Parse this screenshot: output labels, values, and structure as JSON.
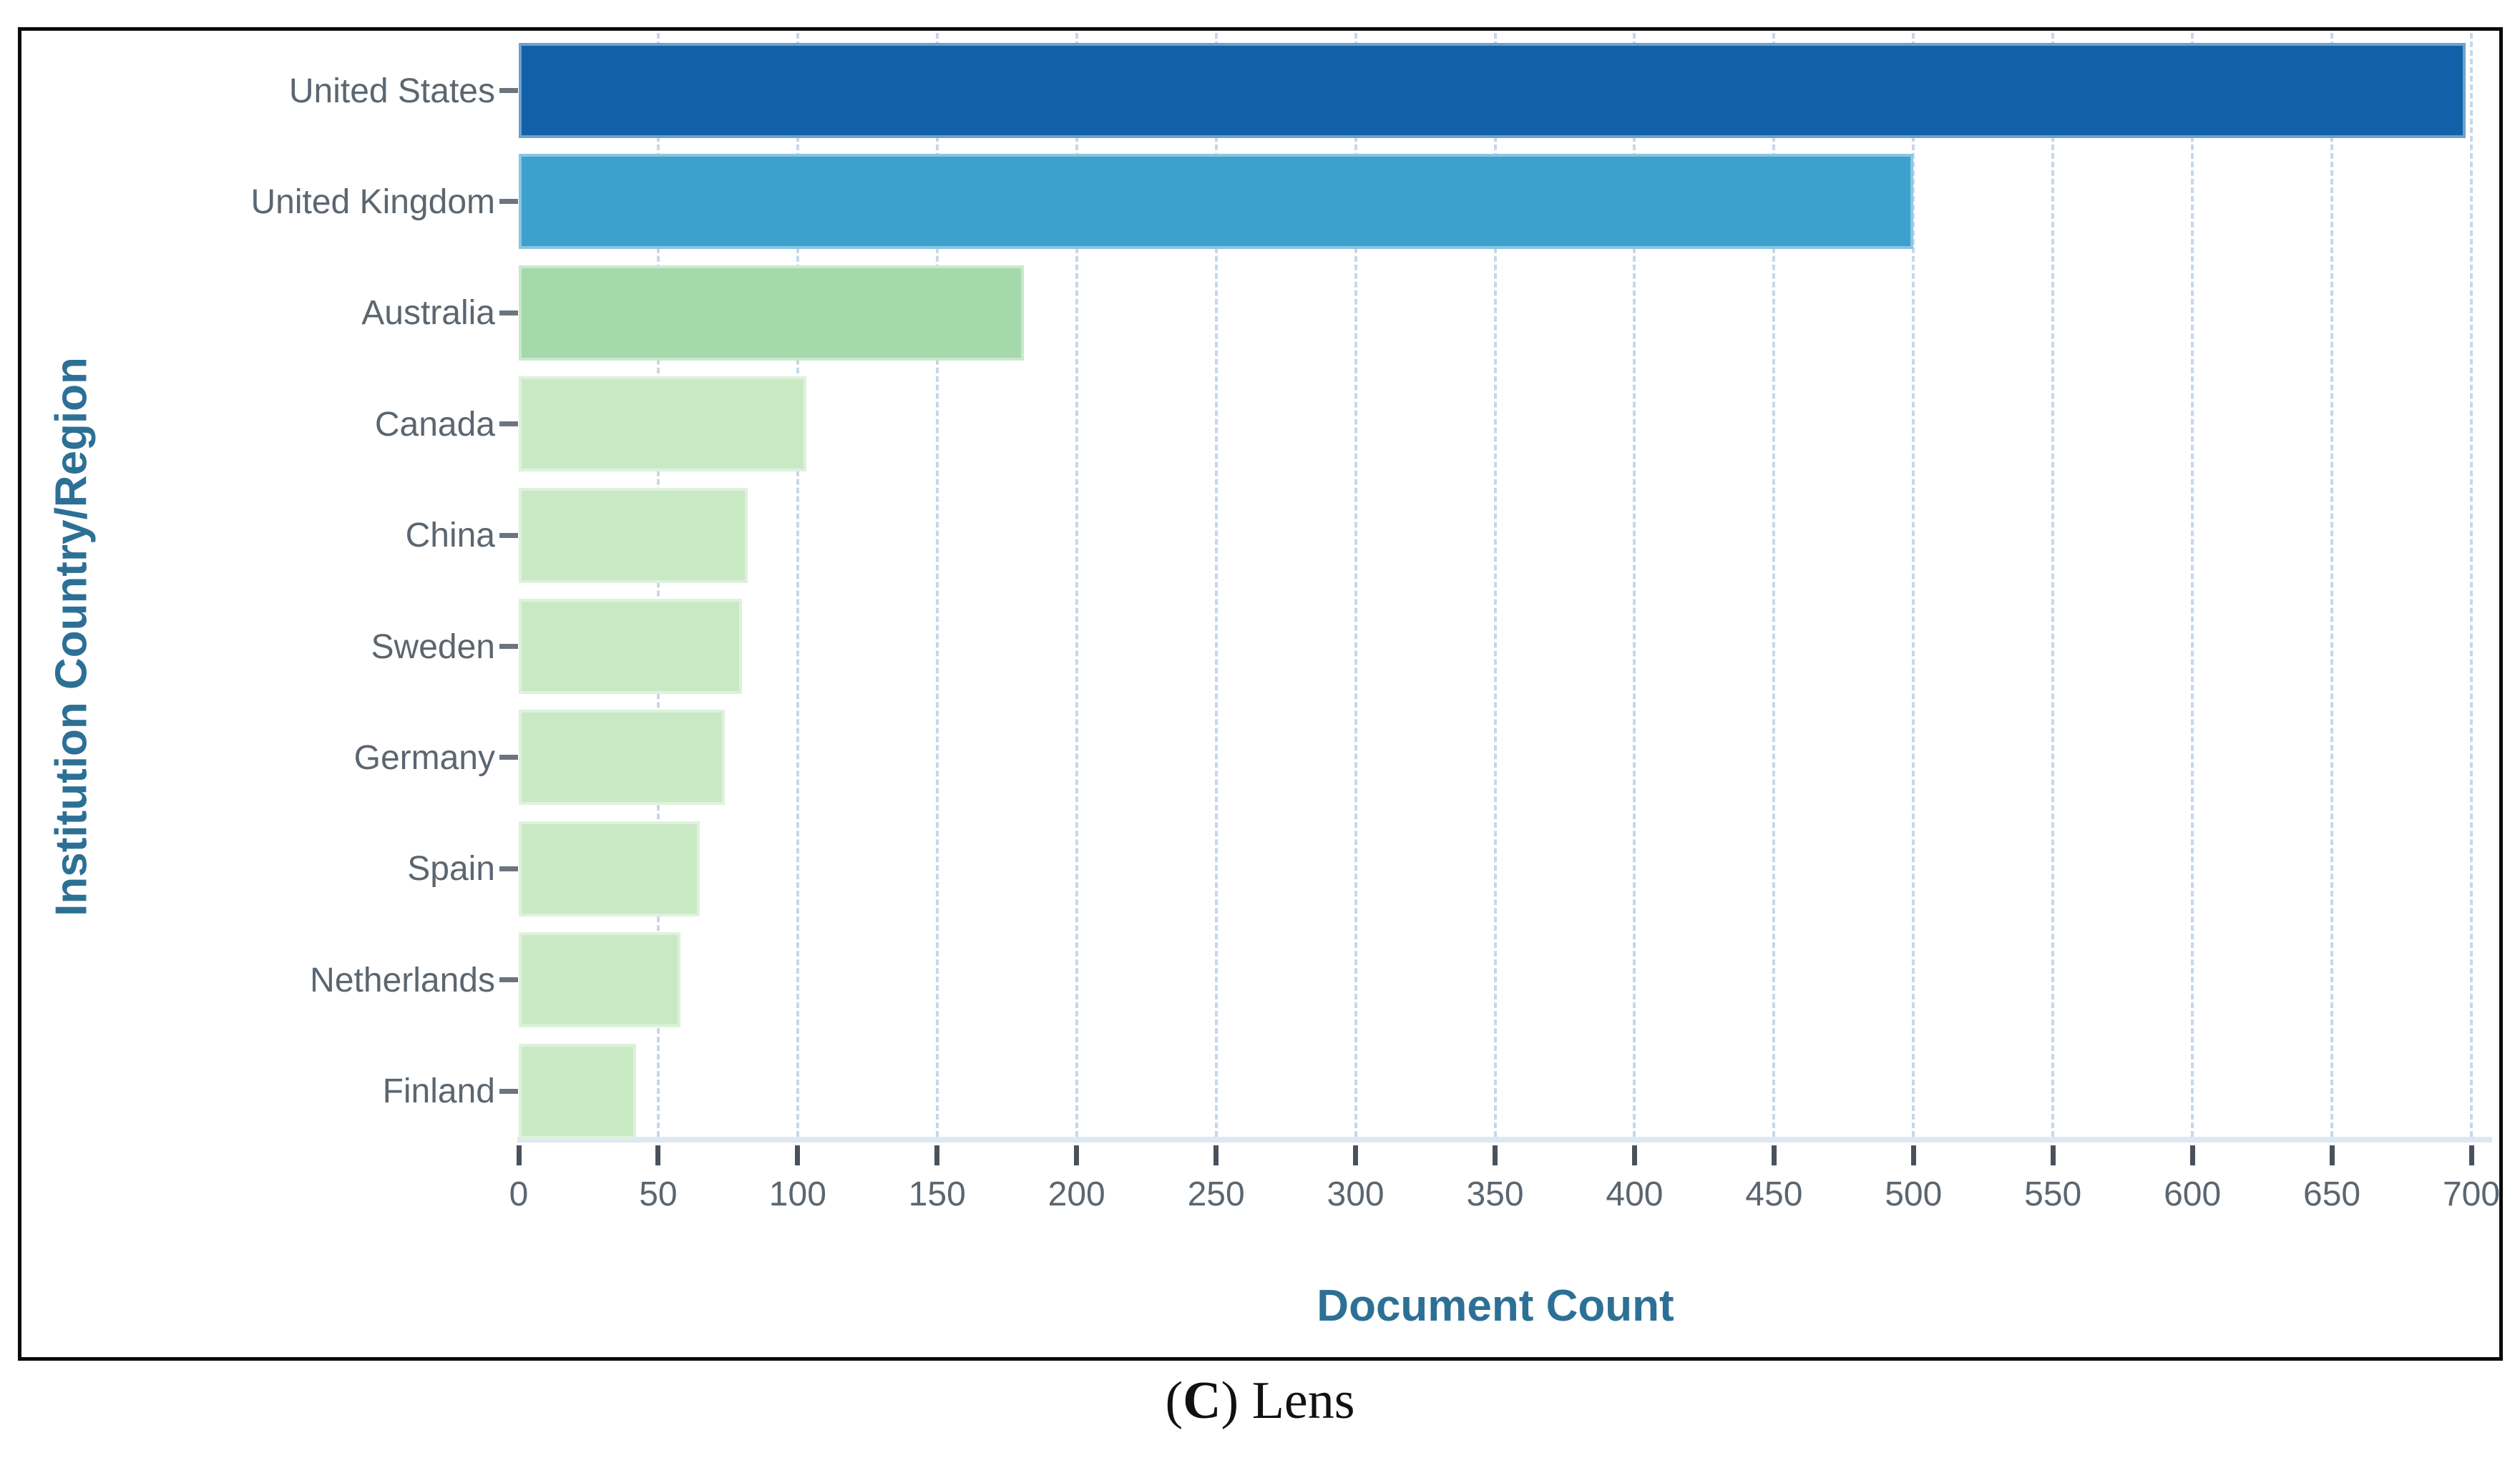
{
  "chart_data": {
    "type": "bar",
    "orientation": "horizontal",
    "categories": [
      "United States",
      "United Kingdom",
      "Australia",
      "Canada",
      "China",
      "Sweden",
      "Germany",
      "Spain",
      "Netherlands",
      "Finland"
    ],
    "values": [
      698,
      500,
      181,
      103,
      82,
      80,
      74,
      65,
      58,
      42
    ],
    "bar_colors": [
      "#1161a8",
      "#3da0cd",
      "#a5d9ab",
      "#c9e9c4",
      "#c9e9c4",
      "#c9e9c4",
      "#c9e9c4",
      "#c9e9c4",
      "#c9e9c4",
      "#c9e9c4"
    ],
    "xlabel": "Document Count",
    "ylabel": "Institution Country/Region",
    "xlim": [
      0,
      700
    ],
    "xticks": [
      0,
      50,
      100,
      150,
      200,
      250,
      300,
      350,
      400,
      450,
      500,
      550,
      600,
      650,
      700
    ],
    "grid": "vertical-dashed",
    "legend": "none"
  },
  "caption": {
    "open": "(",
    "letter": "C",
    "rest": ") Lens"
  },
  "colors": {
    "us_bar": "#1161a8",
    "uk_bar": "#3da0cd",
    "australia_bar": "#a5d9ab",
    "green_bar": "#c9e9c4",
    "gridline": "#c7d7e8",
    "axis_band": "#dfe8f2",
    "tick_mark": "#49525c",
    "label_text": "#5b6670",
    "axis_title_text": "#2d7095",
    "border": "#0a0a0a"
  }
}
